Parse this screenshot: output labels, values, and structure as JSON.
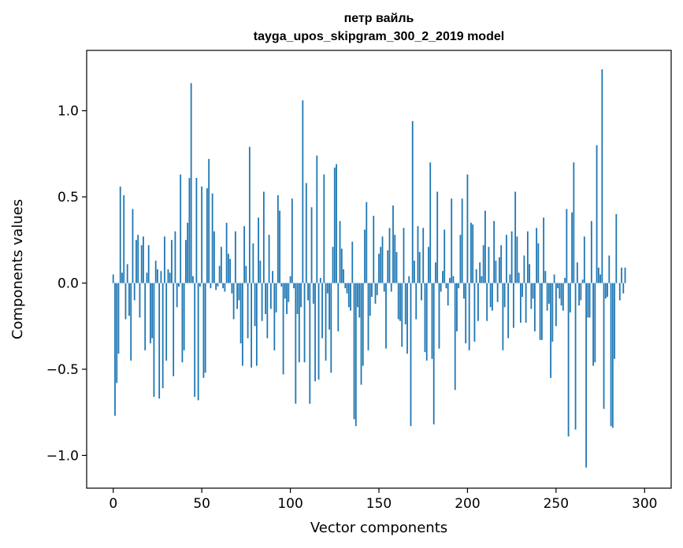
{
  "chart_data": {
    "type": "bar",
    "title": "петр вайль",
    "subtitle": "tayga_upos_skipgram_300_2_2019 model",
    "xlabel": "Vector components",
    "ylabel": "Components values",
    "xlim": [
      -15,
      315
    ],
    "ylim": [
      -1.19,
      1.35
    ],
    "xticks": [
      0,
      50,
      100,
      150,
      200,
      250,
      300
    ],
    "xtick_labels": [
      "0",
      "50",
      "100",
      "150",
      "200",
      "250",
      "300"
    ],
    "yticks": [
      -1.0,
      -0.5,
      0.0,
      0.5,
      1.0
    ],
    "ytick_labels": [
      "−1.0",
      "−0.5",
      "0.0",
      "0.5",
      "1.0"
    ],
    "grid": false,
    "legend": "none",
    "color": "#1f77b4",
    "x_start": 0,
    "values": [
      0.05,
      -0.77,
      -0.58,
      -0.41,
      0.56,
      0.06,
      0.51,
      -0.21,
      0.11,
      -0.19,
      -0.45,
      0.43,
      -0.1,
      0.25,
      0.28,
      -0.2,
      0.22,
      0.27,
      -0.39,
      0.06,
      0.22,
      -0.35,
      -0.32,
      -0.66,
      0.13,
      0.08,
      -0.67,
      0.07,
      -0.61,
      0.27,
      -0.45,
      0.08,
      0.06,
      0.25,
      -0.54,
      0.3,
      -0.14,
      -0.02,
      0.63,
      -0.46,
      -0.39,
      0.25,
      0.35,
      0.61,
      1.16,
      0.04,
      -0.66,
      0.61,
      -0.68,
      -0.02,
      0.56,
      -0.55,
      -0.52,
      0.55,
      0.72,
      -0.03,
      0.52,
      0.3,
      -0.04,
      -0.02,
      0.1,
      0.21,
      -0.03,
      -0.05,
      0.35,
      0.17,
      0.14,
      -0.06,
      -0.21,
      0.3,
      -0.15,
      -0.1,
      -0.35,
      -0.48,
      0.33,
      0.1,
      -0.32,
      0.79,
      -0.49,
      0.23,
      -0.25,
      -0.48,
      0.38,
      0.13,
      -0.22,
      0.53,
      -0.18,
      -0.32,
      0.28,
      -0.15,
      0.07,
      -0.39,
      -0.17,
      0.51,
      0.42,
      -0.02,
      -0.53,
      -0.09,
      -0.18,
      -0.11,
      0.04,
      0.49,
      -0.03,
      -0.7,
      -0.18,
      -0.46,
      -0.14,
      1.06,
      -0.46,
      0.58,
      -0.1,
      -0.7,
      0.44,
      -0.12,
      -0.57,
      0.74,
      -0.56,
      0.03,
      -0.32,
      0.63,
      -0.45,
      -0.06,
      -0.27,
      -0.52,
      0.21,
      0.67,
      0.69,
      -0.28,
      0.36,
      0.2,
      0.08,
      -0.03,
      -0.06,
      -0.14,
      -0.16,
      0.24,
      -0.79,
      -0.83,
      -0.14,
      -0.2,
      -0.59,
      -0.48,
      0.31,
      0.47,
      -0.39,
      -0.19,
      -0.08,
      0.39,
      -0.12,
      -0.07,
      0.17,
      0.21,
      0.27,
      -0.05,
      -0.38,
      0.19,
      0.32,
      -0.05,
      0.45,
      0.28,
      0.18,
      -0.21,
      -0.22,
      -0.37,
      0.32,
      -0.24,
      -0.41,
      0.04,
      -0.83,
      0.94,
      0.13,
      -0.21,
      0.33,
      0.18,
      -0.1,
      0.32,
      -0.4,
      -0.45,
      0.21,
      0.7,
      -0.44,
      -0.82,
      0.12,
      0.53,
      -0.38,
      -0.05,
      0.07,
      0.31,
      -0.03,
      -0.13,
      0.03,
      0.49,
      0.04,
      -0.62,
      -0.28,
      -0.03,
      0.28,
      0.49,
      -0.09,
      -0.35,
      0.63,
      -0.39,
      0.35,
      0.34,
      -0.34,
      0.08,
      -0.22,
      0.12,
      0.04,
      0.22,
      0.42,
      -0.22,
      0.21,
      -0.14,
      -0.16,
      0.36,
      0.13,
      -0.11,
      0.15,
      0.22,
      -0.39,
      -0.14,
      0.28,
      -0.32,
      0.05,
      0.3,
      -0.26,
      0.53,
      0.27,
      0.06,
      -0.23,
      -0.08,
      0.16,
      -0.23,
      0.3,
      0.11,
      -0.15,
      -0.09,
      -0.28,
      0.32,
      0.23,
      -0.33,
      -0.33,
      0.38,
      0.07,
      -0.16,
      -0.12,
      -0.55,
      -0.34,
      0.05,
      -0.25,
      -0.03,
      -0.09,
      -0.13,
      -0.16,
      0.03,
      0.43,
      -0.89,
      -0.17,
      0.41,
      0.7,
      -0.85,
      0.12,
      -0.13,
      -0.1,
      0.02,
      0.27,
      -1.07,
      -0.2,
      -0.2,
      0.36,
      -0.48,
      -0.46,
      0.8,
      0.09,
      0.05,
      1.24,
      -0.73,
      -0.09,
      -0.08,
      0.16,
      -0.83,
      -0.84,
      -0.44,
      0.4,
      0.0,
      -0.1,
      0.09,
      -0.06,
      0.09
    ]
  }
}
